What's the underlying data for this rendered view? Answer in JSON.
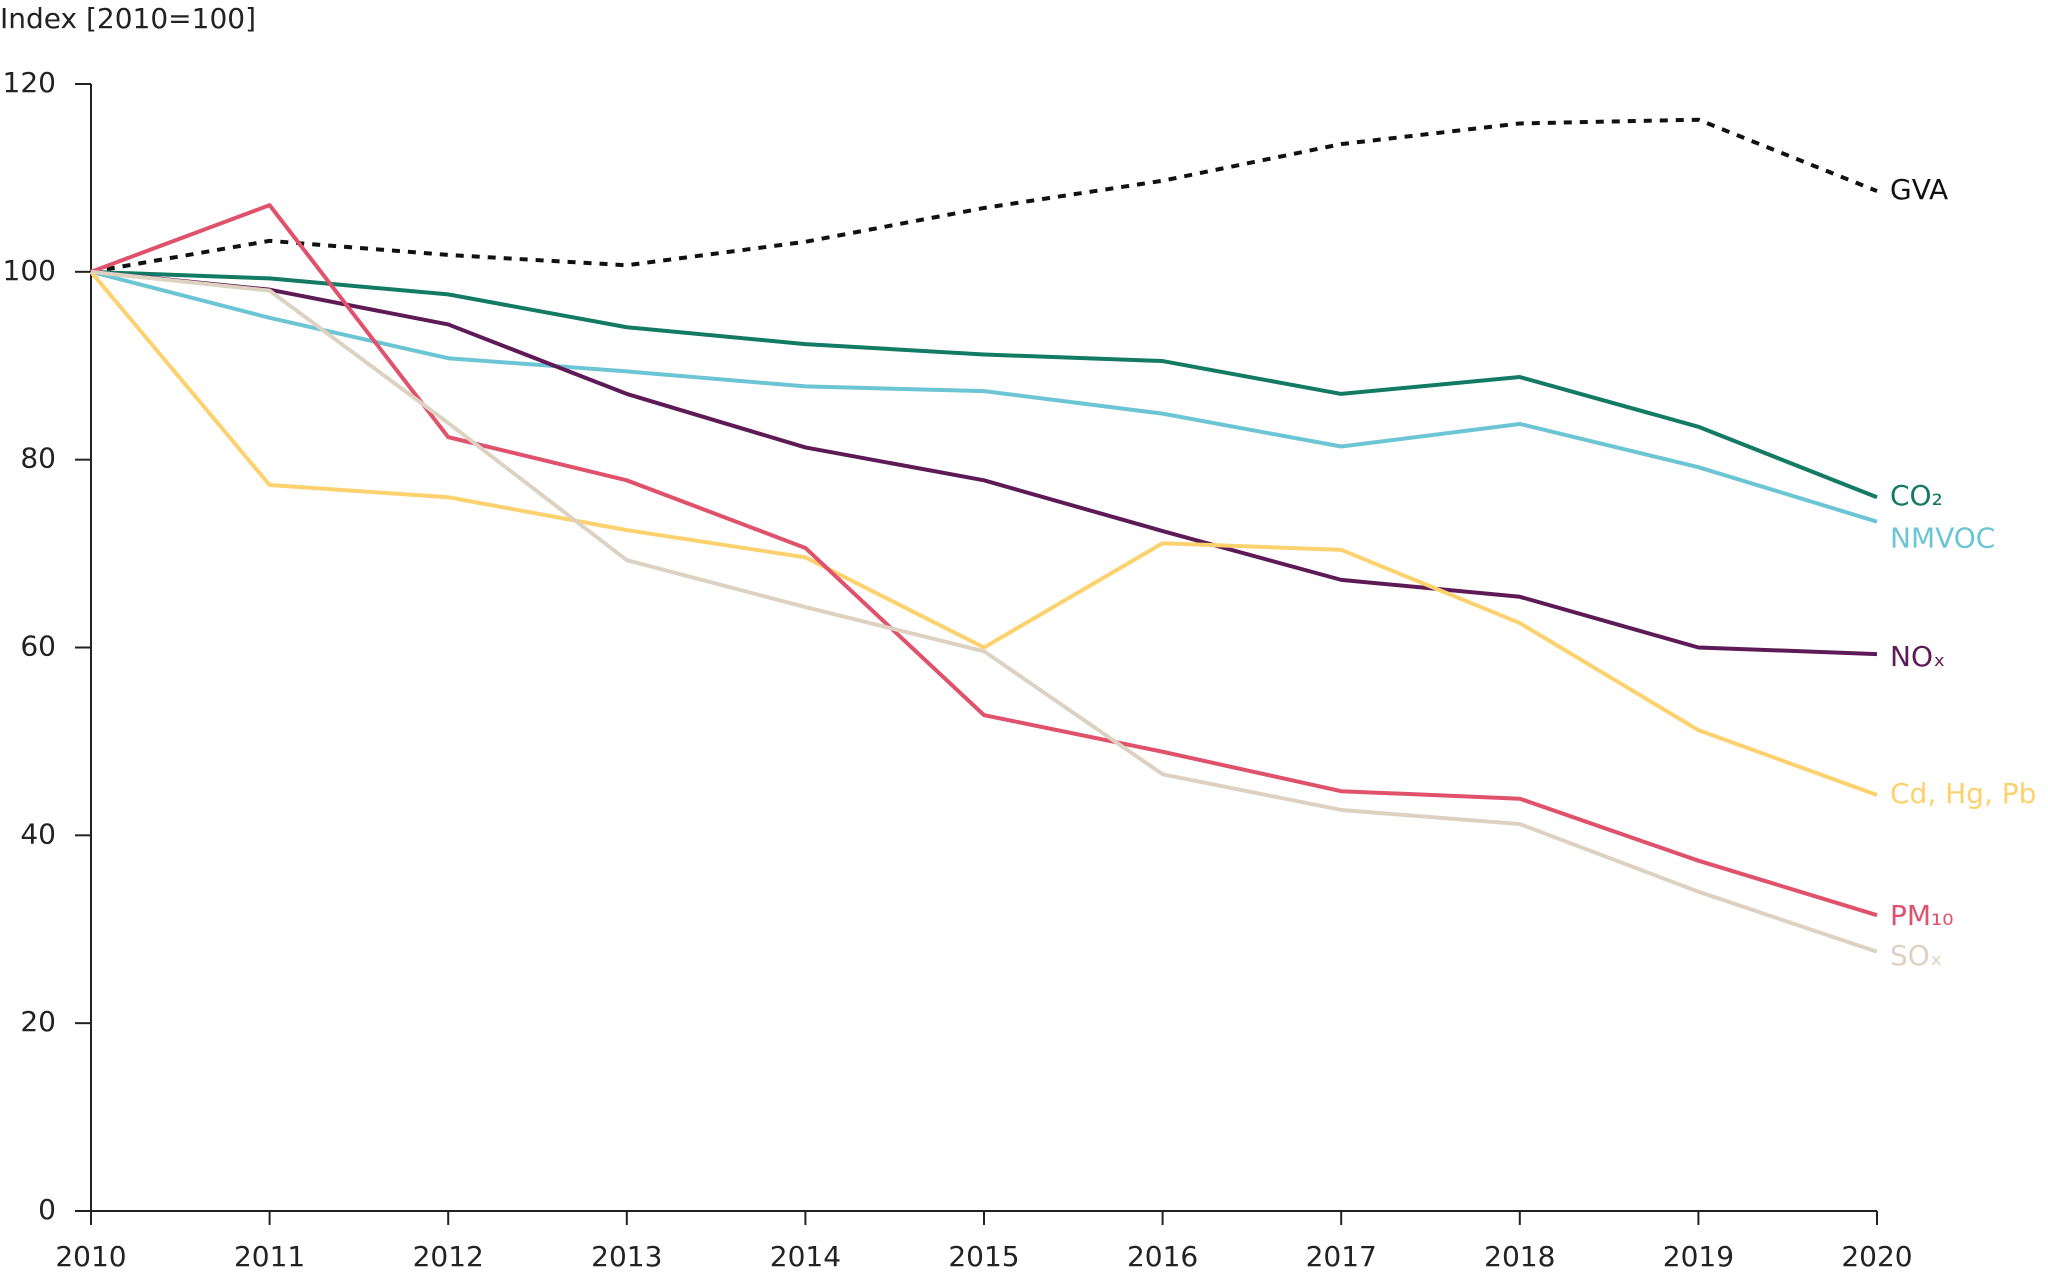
{
  "chart_data": {
    "type": "line",
    "y_label": "Index [2010=100]",
    "x": [
      2010,
      2011,
      2012,
      2013,
      2014,
      2015,
      2016,
      2017,
      2018,
      2019,
      2020
    ],
    "xlim": [
      2010,
      2020
    ],
    "xticks": [
      2010,
      2011,
      2012,
      2013,
      2014,
      2015,
      2016,
      2017,
      2018,
      2019,
      2020
    ],
    "ylim": [
      0,
      120
    ],
    "yticks": [
      0,
      20,
      40,
      60,
      80,
      100,
      120
    ],
    "grid": false,
    "series": [
      {
        "name": "GVA",
        "color": "#111111",
        "dashed": true,
        "values": [
          100,
          103.3,
          101.8,
          100.7,
          103.2,
          106.8,
          109.7,
          113.6,
          115.8,
          116.2,
          108.6
        ]
      },
      {
        "name": "CO₂",
        "color": "#137a63",
        "values": [
          100,
          99.3,
          97.6,
          94.1,
          92.3,
          91.2,
          90.5,
          87.0,
          88.8,
          83.5,
          76.0
        ]
      },
      {
        "name": "NMVOC",
        "color": "#6cc5d5",
        "values": [
          100,
          95.1,
          90.8,
          89.4,
          87.8,
          87.3,
          84.9,
          81.4,
          83.8,
          79.2,
          73.4
        ]
      },
      {
        "name": "NOₓ",
        "color": "#5e1a56",
        "values": [
          100,
          98.1,
          94.4,
          87.0,
          81.3,
          77.8,
          72.4,
          67.2,
          65.4,
          60.0,
          59.3
        ]
      },
      {
        "name": "Cd, Hg, Pb",
        "color": "#fdd16d",
        "values": [
          100,
          77.3,
          76.0,
          72.5,
          69.6,
          60.0,
          71.1,
          70.4,
          62.6,
          51.2,
          44.3
        ]
      },
      {
        "name": "PM₁₀",
        "color": "#e0516b",
        "values": [
          100,
          107.1,
          82.4,
          77.8,
          70.6,
          52.8,
          48.9,
          44.7,
          43.9,
          37.3,
          31.5
        ]
      },
      {
        "name": "SOₓ",
        "color": "#ddd2c2",
        "values": [
          100,
          98.0,
          83.9,
          69.3,
          64.3,
          59.6,
          46.5,
          42.7,
          41.2,
          34.0,
          27.6
        ]
      }
    ]
  }
}
